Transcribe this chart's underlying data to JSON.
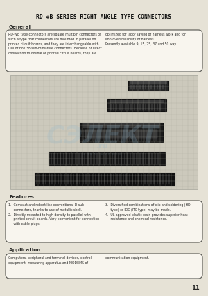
{
  "title": "RD ✱B SERIES RIGHT ANGLE TYPE CONNECTORS",
  "bg_color": "#f0ede4",
  "page_bg": "#e6e2d6",
  "section_general": "General",
  "gen_left": "RD-WB type connectors are square multipin connectors of\nsuch a type that connectors are mounted in parallel on\nprinted circuit boards, and they are interchangeable with\nDW or box 38 sub-miniature connectors. Because of direct\nconnection to double or printed circuit boards, they are",
  "gen_right": "optimized for labor saving of harness work and for\nimproved reliability of harness.\nPresently available 9, 15, 25, 37 and 50 way.",
  "section_features": "Features",
  "feat_left": "1.  Compact and robust like conventional D sub\n     connectors, thanks to use of metallic shell.\n2.  Directly mounted to high density to parallel with\n     printed circuit boards. Very convenient for connection\n     with cable plugs.",
  "feat_right": "3.  Diversified combinations of clip and soldering (HD\n     type) or IDC (ITC type) may be made.\n4.  UL approved plastic resin provides superior heat\n     resistance and chemical resistance.",
  "section_application": "Application",
  "app_left": "Computers, peripheral and terminal devices, control\nequipment, measuring apparatus and MODEMS of",
  "app_right": "communication equipment.",
  "page_number": "11",
  "line_color": "#888880",
  "border_color": "#555550",
  "text_color": "#2a2a28",
  "title_color": "#111110",
  "grid_color": "#c0bdb0",
  "grid_line_color": "#a8a89a",
  "box_face": "#f8f5ee",
  "watermark_color": "#90b8d0",
  "watermark_alpha": 0.22
}
